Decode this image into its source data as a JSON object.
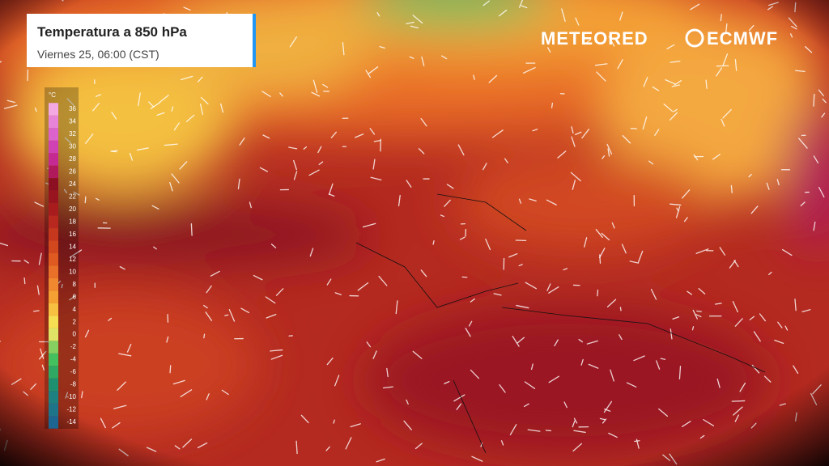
{
  "header": {
    "title": "Temperatura a 850 hPa",
    "subtitle": "Viernes 25, 06:00 (CST)"
  },
  "logos": [
    "METEORED",
    "ECMWF"
  ],
  "legend": {
    "unit": "°C",
    "ticks": [
      36,
      34,
      32,
      30,
      28,
      26,
      24,
      22,
      20,
      18,
      16,
      14,
      12,
      10,
      8,
      6,
      4,
      2,
      0,
      -2,
      -4,
      -6,
      -8,
      -10,
      -12,
      -14
    ],
    "colors": [
      "#f4a8e4",
      "#e884d8",
      "#dc62cc",
      "#d042b4",
      "#c42a92",
      "#b01a5c",
      "#8c0f22",
      "#98141e",
      "#a81c1e",
      "#b8281e",
      "#c6381e",
      "#d2481e",
      "#de5a20",
      "#e87028",
      "#f08830",
      "#f4a032",
      "#f8c040",
      "#f6de52",
      "#dfe466",
      "#86d062",
      "#44c05e",
      "#2ea862",
      "#1e9070",
      "#1e8080",
      "#1e7488",
      "#1e6692"
    ]
  }
}
